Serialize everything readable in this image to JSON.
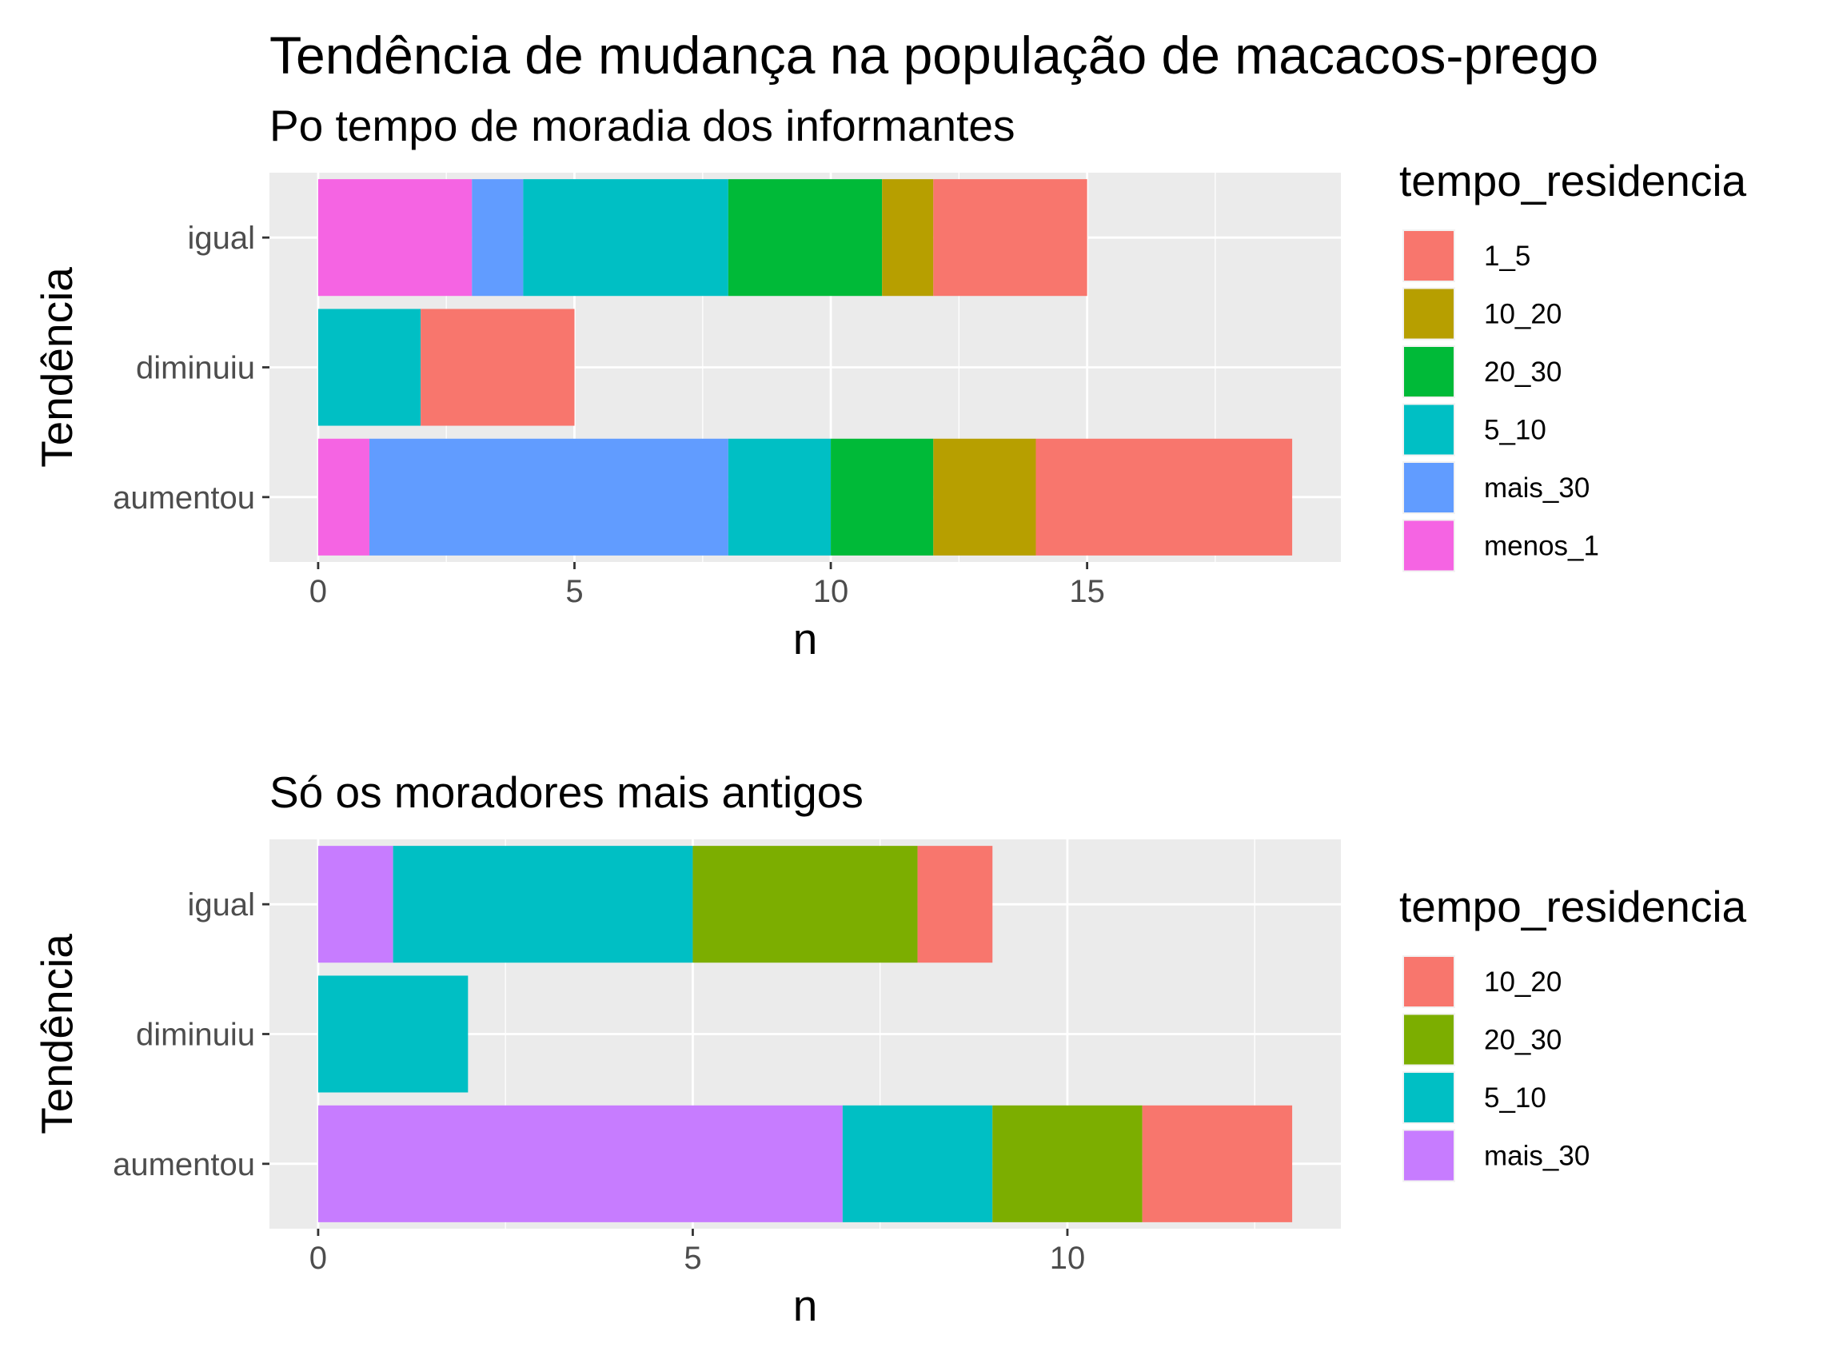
{
  "figure": {
    "title": "Tendência de mudança na população de macacos-prego"
  },
  "chart_data": [
    {
      "type": "bar",
      "orientation": "horizontal",
      "stacked": true,
      "subtitle": "Po tempo de moradia dos informantes",
      "xlabel": "n",
      "ylabel": "Tendência",
      "categories": [
        "igual",
        "diminuiu",
        "aumentou"
      ],
      "xlim": [
        -0.95,
        19.95
      ],
      "xticks": [
        0,
        5,
        10,
        15
      ],
      "grid": true,
      "legend": {
        "title": "tempo_residencia",
        "position": "right"
      },
      "series": [
        {
          "name": "1_5",
          "color": "#F8766D",
          "values": [
            3,
            3,
            5
          ]
        },
        {
          "name": "10_20",
          "color": "#B79F00",
          "values": [
            1,
            0,
            2
          ]
        },
        {
          "name": "20_30",
          "color": "#00BA38",
          "values": [
            3,
            0,
            2
          ]
        },
        {
          "name": "5_10",
          "color": "#00BFC4",
          "values": [
            4,
            2,
            2
          ]
        },
        {
          "name": "mais_30",
          "color": "#619CFF",
          "values": [
            1,
            0,
            7
          ]
        },
        {
          "name": "menos_1",
          "color": "#F564E3",
          "values": [
            3,
            0,
            1
          ]
        }
      ],
      "stack_order": [
        "menos_1",
        "mais_30",
        "5_10",
        "20_30",
        "10_20",
        "1_5"
      ]
    },
    {
      "type": "bar",
      "orientation": "horizontal",
      "stacked": true,
      "subtitle": "Só os moradores mais antigos",
      "xlabel": "n",
      "ylabel": "Tendência",
      "categories": [
        "igual",
        "diminuiu",
        "aumentou"
      ],
      "xlim": [
        -0.65,
        13.65
      ],
      "xticks": [
        0,
        5,
        10
      ],
      "grid": true,
      "legend": {
        "title": "tempo_residencia",
        "position": "right"
      },
      "series": [
        {
          "name": "10_20",
          "color": "#F8766D",
          "values": [
            1,
            0,
            2
          ]
        },
        {
          "name": "20_30",
          "color": "#7CAE00",
          "values": [
            3,
            0,
            2
          ]
        },
        {
          "name": "5_10",
          "color": "#00BFC4",
          "values": [
            4,
            2,
            2
          ]
        },
        {
          "name": "mais_30",
          "color": "#C77CFF",
          "values": [
            1,
            0,
            7
          ]
        }
      ],
      "stack_order": [
        "mais_30",
        "5_10",
        "20_30",
        "10_20"
      ]
    }
  ]
}
